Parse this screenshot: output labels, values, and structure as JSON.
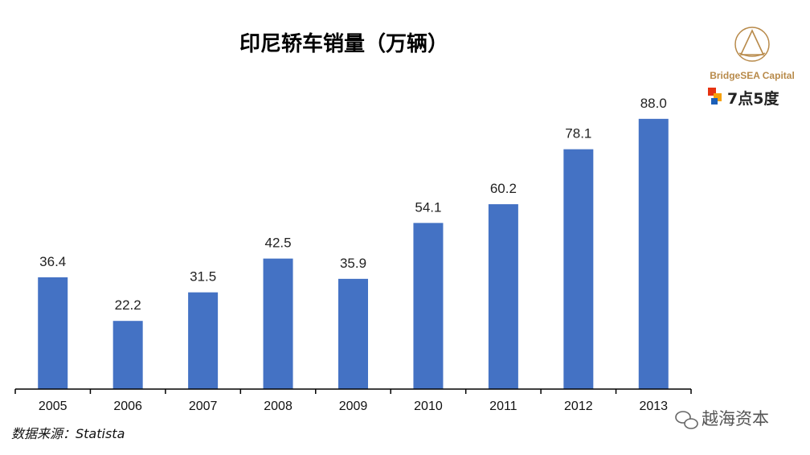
{
  "chart_data": {
    "type": "bar",
    "title": "印尼轿车销量（万辆）",
    "categories": [
      "2005",
      "2006",
      "2007",
      "2008",
      "2009",
      "2010",
      "2011",
      "2012",
      "2013"
    ],
    "values": [
      36.4,
      22.2,
      31.5,
      42.5,
      35.9,
      54.1,
      60.2,
      78.1,
      88.0
    ],
    "value_labels": [
      "36.4",
      "22.2",
      "31.5",
      "42.5",
      "35.9",
      "54.1",
      "60.2",
      "78.1",
      "88.0"
    ],
    "ylim": [
      0,
      100
    ],
    "grid": false,
    "legend": "none",
    "bar_color": "#4472C4"
  },
  "source": "数据来源：Statista",
  "branding": {
    "logo1_text": "BridgeSEA Capital",
    "logo2_text": "7点5度",
    "watermark": "越海资本",
    "logo_color": "#B88A4A"
  }
}
